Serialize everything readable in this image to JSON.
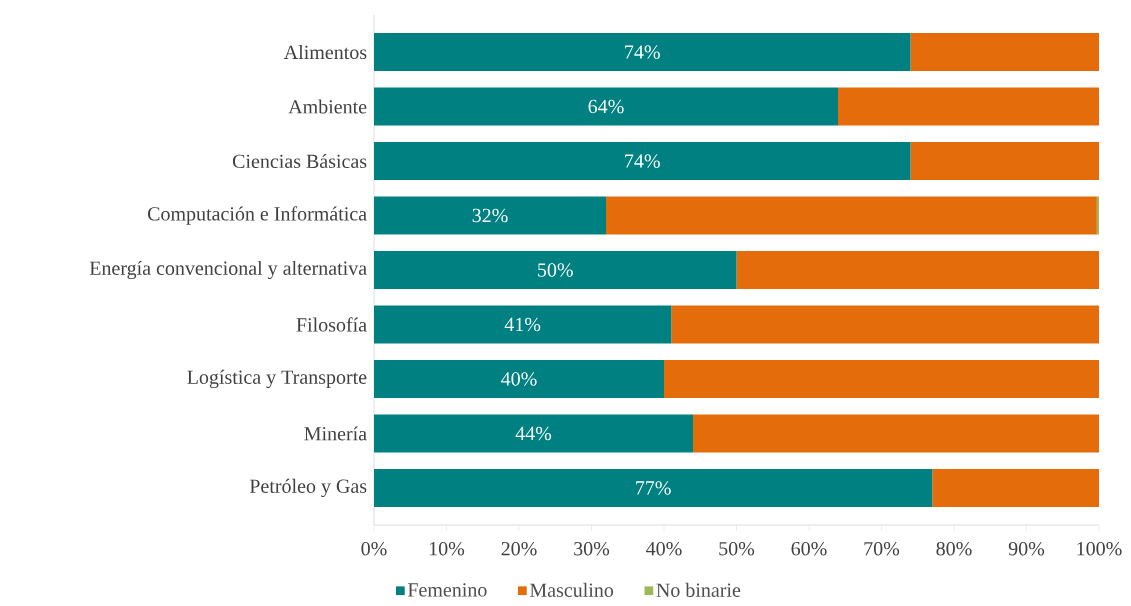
{
  "chart_data": {
    "type": "bar",
    "orientation": "horizontal",
    "stacked": true,
    "categories": [
      "Alimentos",
      "Ambiente",
      "Ciencias Básicas",
      "Computación e Informática",
      "Energía convencional y alternativa",
      "Filosofía",
      "Logística y Transporte",
      "Minería",
      "Petróleo y Gas"
    ],
    "series": [
      {
        "name": "Femenino",
        "color": "#008080",
        "values": [
          74,
          64,
          74,
          32,
          50,
          41,
          40,
          44,
          77
        ],
        "value_labels": [
          "74%",
          "64%",
          "74%",
          "32%",
          "50%",
          "41%",
          "40%",
          "44%",
          "77%"
        ]
      },
      {
        "name": "Masculino",
        "color": "#e46c0a",
        "values": [
          26,
          36,
          26,
          67.7,
          50,
          59,
          60,
          56,
          23
        ]
      },
      {
        "name": "No binarie",
        "color": "#9bbb59",
        "values": [
          null,
          null,
          null,
          0.3,
          null,
          null,
          null,
          null,
          null
        ]
      }
    ],
    "xlim": [
      0,
      100
    ],
    "xticks": [
      {
        "value": 0,
        "label": "0%"
      },
      {
        "value": 10,
        "label": "10%"
      },
      {
        "value": 20,
        "label": "20%"
      },
      {
        "value": 30,
        "label": "30%"
      },
      {
        "value": 40,
        "label": "40%"
      },
      {
        "value": 50,
        "label": "50%"
      },
      {
        "value": 60,
        "label": "60%"
      },
      {
        "value": 70,
        "label": "70%"
      },
      {
        "value": 80,
        "label": "80%"
      },
      {
        "value": 90,
        "label": "90%"
      },
      {
        "value": 100,
        "label": "100%"
      }
    ],
    "legend": "bottom"
  }
}
